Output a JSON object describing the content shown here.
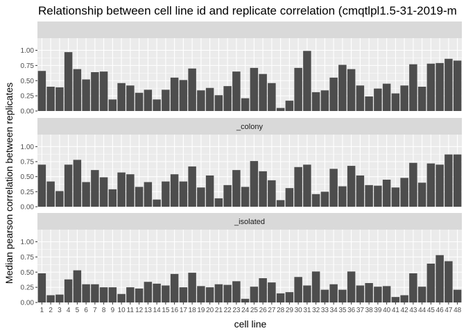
{
  "chart_data": {
    "type": "bar",
    "title": "Relationship between cell line id and replicate correlation (cmqtlpl1.5-31-2019-m",
    "xlabel": "cell line",
    "ylabel": "Median pearson correlation between replicates",
    "ylim": [
      0,
      1.2
    ],
    "yticks": [
      "0.00",
      "0.25",
      "0.50",
      "0.75",
      "1.00"
    ],
    "categories": [
      "1",
      "2",
      "3",
      "4",
      "5",
      "6",
      "7",
      "8",
      "9",
      "10",
      "11",
      "12",
      "13",
      "14",
      "15",
      "16",
      "17",
      "18",
      "19",
      "20",
      "21",
      "22",
      "23",
      "24",
      "25",
      "26",
      "27",
      "28",
      "29",
      "30",
      "31",
      "32",
      "33",
      "34",
      "35",
      "36",
      "37",
      "38",
      "39",
      "40",
      "41",
      "42",
      "43",
      "44",
      "45",
      "46",
      "47",
      "48"
    ],
    "facets": [
      {
        "strip_label": "",
        "values": [
          0.66,
          0.4,
          0.39,
          0.97,
          0.69,
          0.52,
          0.64,
          0.65,
          0.19,
          0.46,
          0.42,
          0.3,
          0.35,
          0.19,
          0.35,
          0.55,
          0.51,
          0.7,
          0.34,
          0.38,
          0.26,
          0.41,
          0.65,
          0.21,
          0.71,
          0.61,
          0.46,
          0.05,
          0.17,
          0.71,
          0.99,
          0.31,
          0.34,
          0.55,
          0.76,
          0.69,
          0.42,
          0.24,
          0.37,
          0.45,
          0.29,
          0.42,
          0.77,
          0.4,
          0.78,
          0.79,
          0.86,
          0.83
        ]
      },
      {
        "strip_label": "_colony",
        "values": [
          0.7,
          0.42,
          0.26,
          0.7,
          0.78,
          0.41,
          0.61,
          0.49,
          0.29,
          0.57,
          0.54,
          0.33,
          0.41,
          0.12,
          0.42,
          0.54,
          0.42,
          0.67,
          0.32,
          0.52,
          0.14,
          0.36,
          0.61,
          0.33,
          0.76,
          0.59,
          0.44,
          0.11,
          0.31,
          0.66,
          0.7,
          0.21,
          0.25,
          0.63,
          0.34,
          0.68,
          0.52,
          0.36,
          0.35,
          0.45,
          0.32,
          0.48,
          0.73,
          0.4,
          0.72,
          0.7,
          0.87,
          0.87
        ]
      },
      {
        "strip_label": "_isolated",
        "values": [
          0.48,
          0.12,
          0.13,
          0.38,
          0.53,
          0.3,
          0.3,
          0.25,
          0.25,
          0.14,
          0.25,
          0.23,
          0.34,
          0.31,
          0.28,
          0.47,
          0.25,
          0.49,
          0.27,
          0.25,
          0.3,
          0.29,
          0.35,
          0.06,
          0.26,
          0.4,
          0.33,
          0.15,
          0.17,
          0.42,
          0.28,
          0.51,
          0.21,
          0.3,
          0.21,
          0.51,
          0.28,
          0.32,
          0.26,
          0.27,
          0.09,
          0.12,
          0.48,
          0.26,
          0.64,
          0.78,
          0.68,
          0.21
        ]
      }
    ],
    "colors": {
      "bar": "#4d4d4d",
      "panel": "#ebebeb",
      "strip": "#d9d9d9",
      "grid": "#ffffff"
    },
    "grid": true
  }
}
